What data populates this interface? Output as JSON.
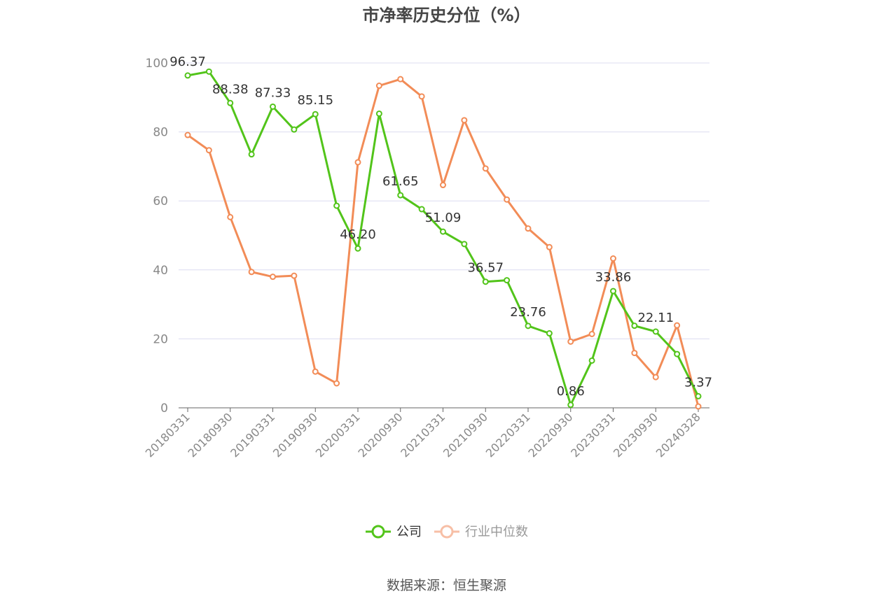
{
  "chart_data": {
    "type": "line",
    "title": "市净率历史分位（%）",
    "source": "数据来源：恒生聚源",
    "x": [
      "20180331",
      "20180630",
      "20180930",
      "20181231",
      "20190331",
      "20190630",
      "20190930",
      "20191231",
      "20200331",
      "20200630",
      "20200930",
      "20201231",
      "20210331",
      "20210630",
      "20210930",
      "20211231",
      "20220331",
      "20220630",
      "20220930",
      "20221230",
      "20230331",
      "20230630",
      "20230930",
      "20231229",
      "20240328"
    ],
    "x_tick_labels": [
      "20180331",
      "20180930",
      "20190331",
      "20190930",
      "20200331",
      "20200930",
      "20210331",
      "20210930",
      "20220331",
      "20220930",
      "20230331",
      "20230930",
      "20240328"
    ],
    "ylim": [
      0,
      100
    ],
    "y_ticks": [
      0,
      20,
      40,
      60,
      80,
      100
    ],
    "grid": true,
    "legend_position": "bottom",
    "series": [
      {
        "name": "公司",
        "color": "#52c41a",
        "values": [
          96.37,
          97.5,
          88.38,
          73.5,
          87.33,
          80.7,
          85.15,
          58.6,
          46.2,
          85.3,
          61.65,
          57.6,
          51.09,
          47.5,
          36.57,
          37.0,
          23.76,
          21.6,
          0.86,
          13.7,
          33.86,
          23.8,
          22.11,
          15.6,
          3.37
        ],
        "labels": [
          "96.37",
          "",
          "88.38",
          "",
          "87.33",
          "",
          "85.15",
          "",
          "46.20",
          "",
          "61.65",
          "",
          "51.09",
          "",
          "36.57",
          "",
          "23.76",
          "",
          "0.86",
          "",
          "33.86",
          "",
          "22.11",
          "",
          "3.37"
        ]
      },
      {
        "name": "行业中位数",
        "color": "#f28c57",
        "legend_color": "#f7bfa6",
        "values": [
          79.1,
          74.7,
          55.3,
          39.4,
          38.0,
          38.3,
          10.5,
          7.1,
          71.2,
          93.4,
          95.3,
          90.3,
          64.6,
          83.4,
          69.4,
          60.4,
          52.0,
          46.6,
          19.2,
          21.4,
          43.3,
          15.9,
          8.9,
          23.9,
          0.4
        ]
      }
    ]
  }
}
